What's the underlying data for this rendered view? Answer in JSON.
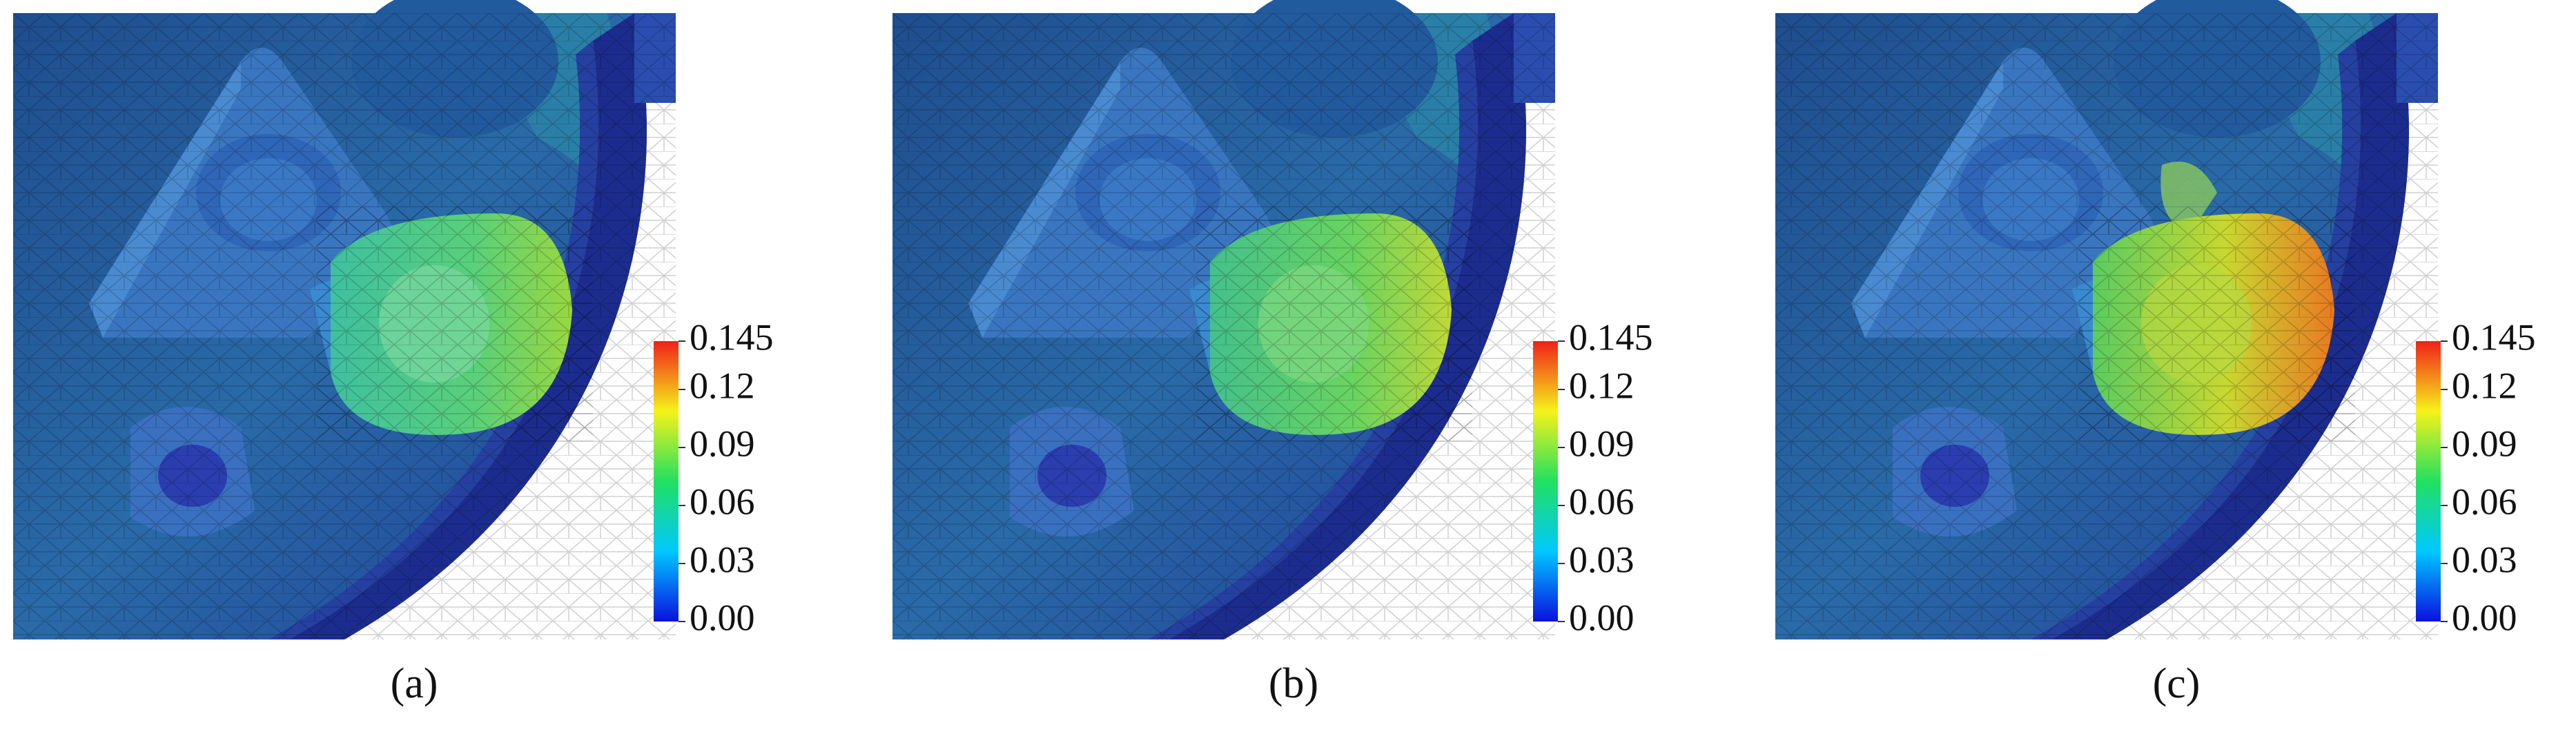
{
  "panels": [
    {
      "caption": "(a)",
      "colorbar": {
        "lim": [
          0,
          0.145
        ],
        "ticks": [
          {
            "value": 0,
            "label": "0.00"
          },
          0.03,
          0.06,
          0.09,
          0.12,
          0.145
        ],
        "colormap": [
          "#0a10e0",
          "#00c8ff",
          "#22e060",
          "#f6f21a",
          "#f0201a"
        ]
      }
    },
    {
      "caption": "(b)",
      "colorbar": {
        "lim": [
          0,
          0.145
        ],
        "ticks": [
          {
            "value": 0,
            "label": "0.00"
          },
          0.03,
          0.06,
          0.09,
          0.12,
          0.145
        ],
        "colormap": [
          "#0a10e0",
          "#00c8ff",
          "#22e060",
          "#f6f21a",
          "#f0201a"
        ]
      }
    },
    {
      "caption": "(c)",
      "colorbar": {
        "lim": [
          0,
          0.145
        ],
        "ticks": [
          {
            "value": 0,
            "label": "0.00"
          },
          0.03,
          0.06,
          0.09,
          0.12,
          0.145
        ],
        "colormap": [
          "#0a10e0",
          "#00c8ff",
          "#22e060",
          "#f6f21a",
          "#f0201a"
        ]
      }
    }
  ]
}
